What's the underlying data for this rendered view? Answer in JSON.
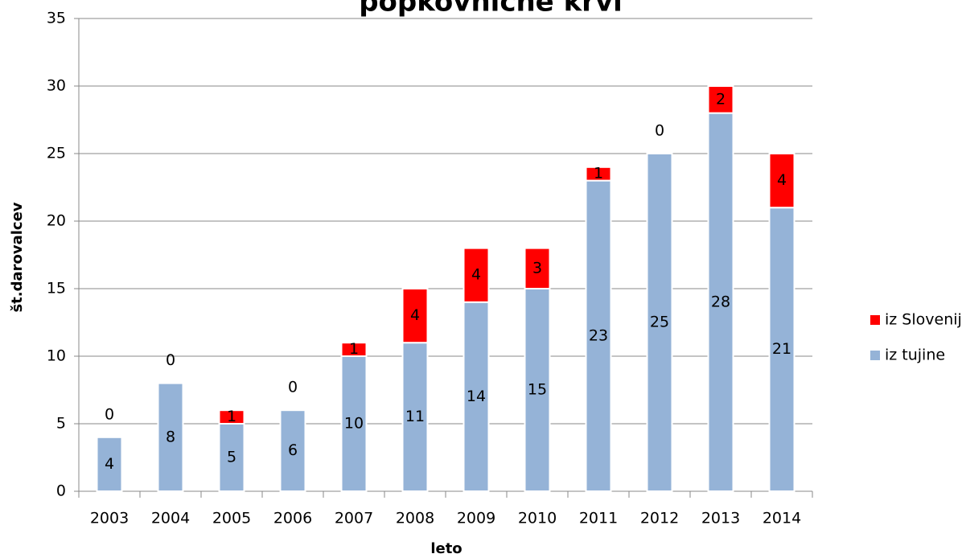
{
  "chart_data": {
    "type": "stacked_bar",
    "title": "popkovnične krvi",
    "xlabel": "leto",
    "ylabel": "št.darovalcev",
    "categories": [
      "2003",
      "2004",
      "2005",
      "2006",
      "2007",
      "2008",
      "2009",
      "2010",
      "2011",
      "2012",
      "2013",
      "2014"
    ],
    "series": [
      {
        "name": "iz tujine",
        "color": "#95b3d7",
        "values": [
          4,
          8,
          5,
          6,
          10,
          11,
          14,
          15,
          23,
          25,
          28,
          21
        ]
      },
      {
        "name": "iz Slovenije",
        "color": "#ff0000",
        "values": [
          0,
          0,
          1,
          0,
          1,
          4,
          4,
          3,
          1,
          0,
          2,
          4
        ]
      }
    ],
    "ylim": [
      0,
      35
    ],
    "yticks": [
      0,
      5,
      10,
      15,
      20,
      25,
      30,
      35
    ],
    "grid": true,
    "legend": "right"
  }
}
